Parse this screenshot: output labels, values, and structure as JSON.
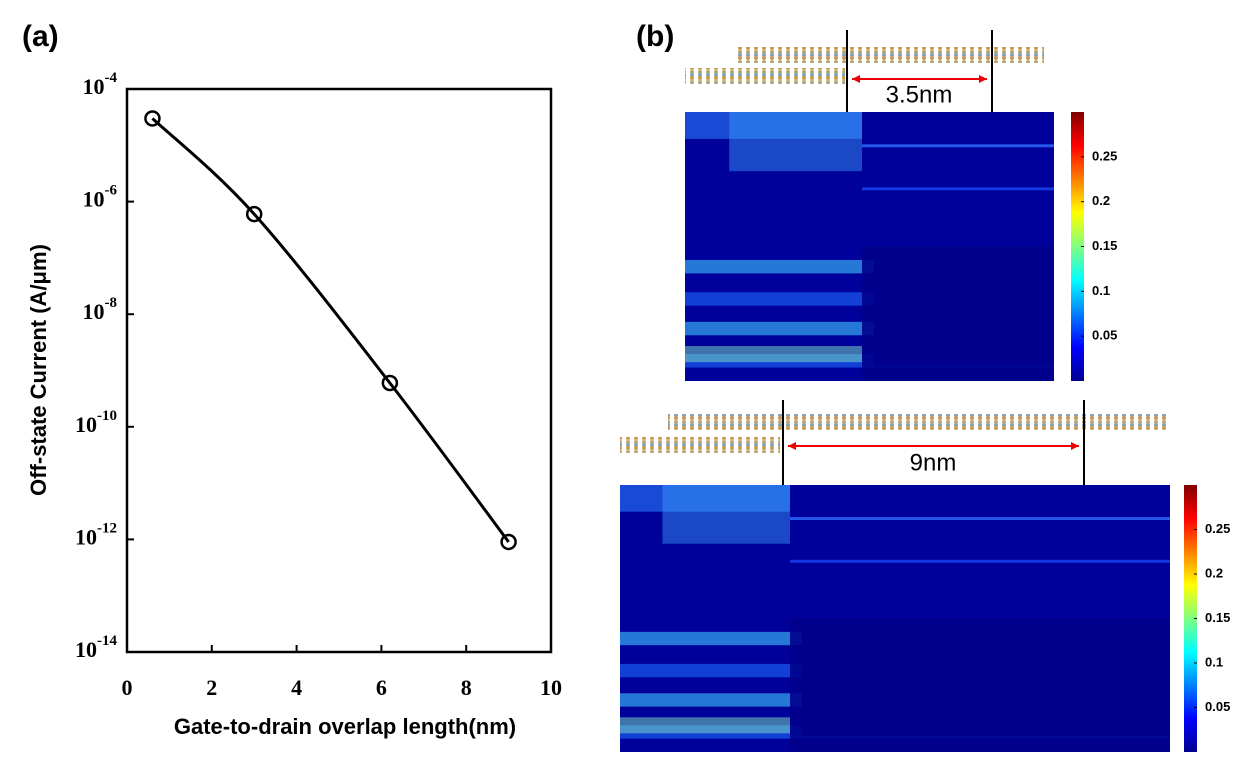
{
  "chart_data": [
    {
      "type": "line",
      "panel_label": "(a)",
      "x_label": "Gate-to-drain overlap length(nm)",
      "y_label": "Off-state Current  (A/μm)",
      "x": [
        0.6,
        3.0,
        6.2,
        9.0
      ],
      "values": [
        3e-05,
        6e-07,
        6e-10,
        9e-13
      ],
      "color": "#000000",
      "log_y": true,
      "xlim": [
        0,
        10
      ],
      "xticks": [
        0,
        2,
        4,
        6,
        8,
        10
      ],
      "ylim": [
        1e-14,
        0.0001
      ],
      "yticks": [
        {
          "value": 1e-14,
          "label": "10-14"
        },
        {
          "value": 1e-12,
          "label": "10-12"
        },
        {
          "value": 1e-10,
          "label": "10-10"
        },
        {
          "value": 1e-08,
          "label": "10-8"
        },
        {
          "value": 1e-06,
          "label": "10-6"
        },
        {
          "value": 0.0001,
          "label": "10-4"
        }
      ]
    },
    {
      "type": "heatmap",
      "panel_label": "(b)",
      "annotation": "3.5nm",
      "clim": [
        0,
        0.3
      ],
      "colorbar_ticks": [
        0.05,
        0.1,
        0.15,
        0.2,
        0.25
      ]
    },
    {
      "type": "heatmap",
      "annotation": "9nm",
      "clim": [
        0,
        0.3
      ],
      "colorbar_ticks": [
        0.05,
        0.1,
        0.15,
        0.2,
        0.25
      ]
    }
  ]
}
